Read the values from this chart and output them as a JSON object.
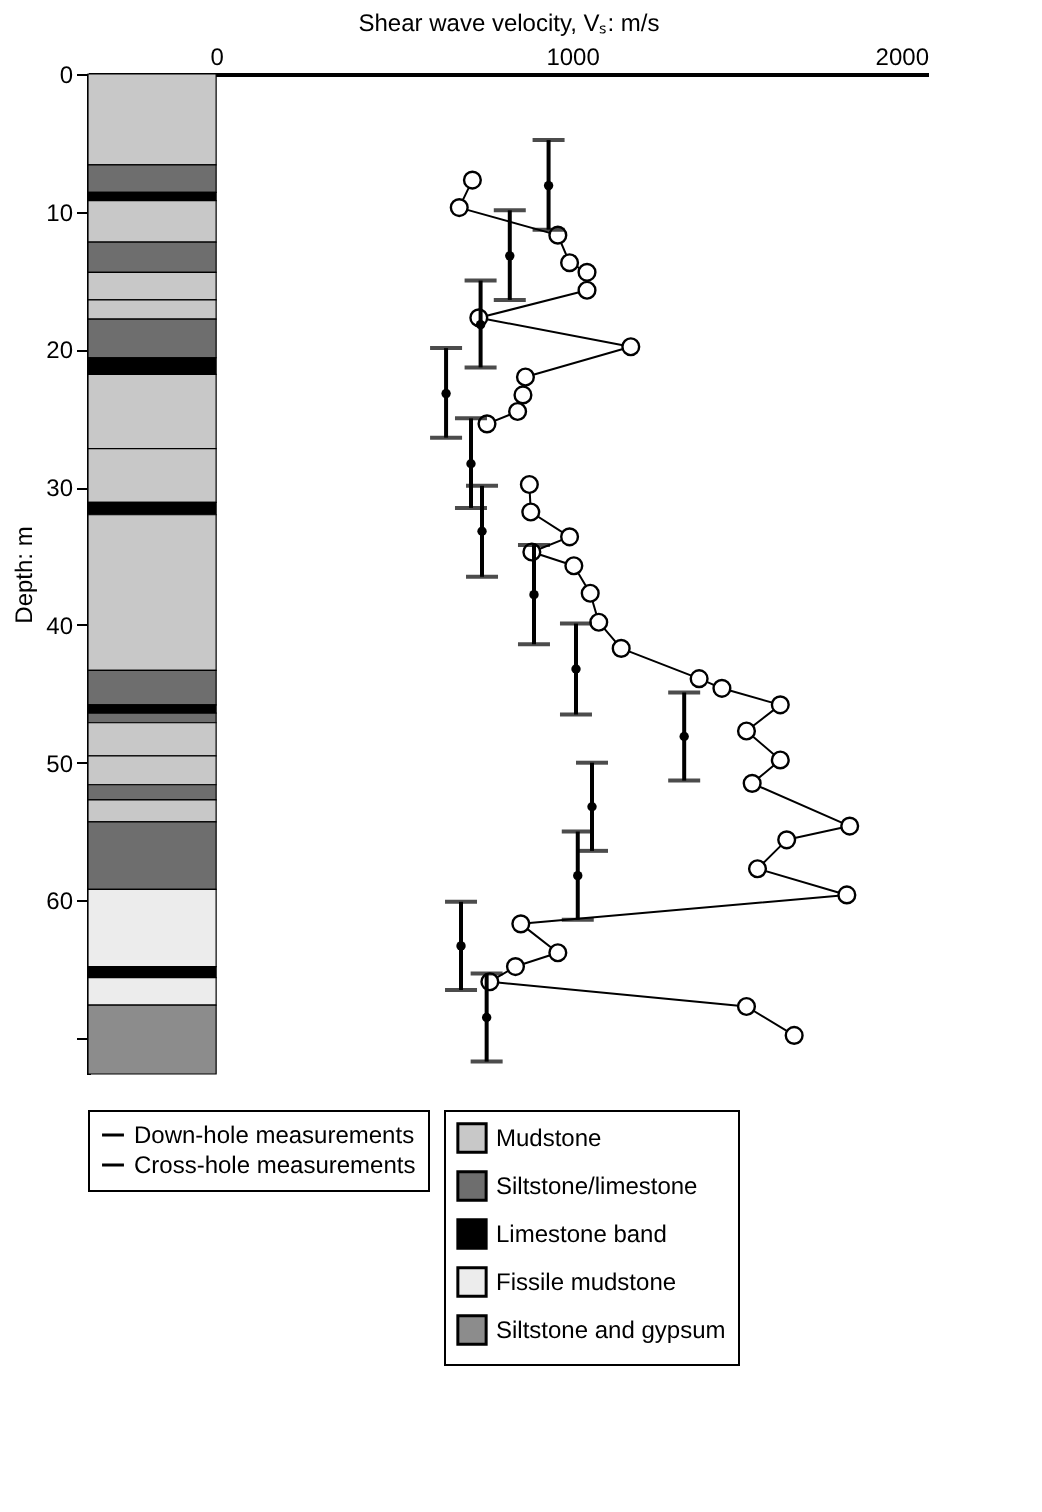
{
  "chart_data": {
    "type": "line",
    "xlabel": "Shear wave velocity, Vₛ: m/s",
    "ylabel": "Depth: m",
    "xlim": [
      -360,
      2000
    ],
    "xticks": [
      0,
      1000,
      2000
    ],
    "ylim": [
      72.6,
      0
    ],
    "yticks": [
      0,
      10,
      20,
      30,
      40,
      50,
      60,
      {
        "value": 70,
        "label": null
      }
    ],
    "grid": false,
    "legend": "bottom",
    "series": [
      {
        "name": "Down-hole measurements",
        "type": "scatter",
        "color": "#000000",
        "x": [
          934,
          825,
          743,
          646,
          716,
          747,
          893,
          1011,
          1315,
          1056,
          1016,
          688,
          760
        ],
        "values": [
          8.1,
          13.2,
          18.2,
          23.2,
          28.3,
          33.2,
          37.8,
          43.2,
          48.1,
          53.2,
          58.2,
          63.3,
          68.5
        ],
        "errors": [
          [
            4.8,
            11.3
          ],
          [
            9.9,
            16.4
          ],
          [
            15.0,
            21.3
          ],
          [
            19.9,
            26.4
          ],
          [
            25.0,
            31.5
          ],
          [
            29.9,
            36.5
          ],
          [
            34.2,
            41.4
          ],
          [
            39.9,
            46.5
          ],
          [
            44.9,
            51.3
          ],
          [
            50.0,
            56.4
          ],
          [
            55.0,
            61.4
          ],
          [
            60.1,
            66.5
          ],
          [
            65.3,
            71.7
          ]
        ]
      },
      {
        "name": "Cross-hole measurements",
        "marker": "circle",
        "line_style": "solid",
        "color": "#000000",
        "x": [
          720,
          683,
          960,
          993,
          1042,
          1042,
          738,
          1165,
          869,
          862,
          847,
          761,
          null,
          880,
          884,
          993,
          887,
          1005,
          1051,
          1075,
          1138,
          1357,
          1421,
          1585,
          1490,
          1585,
          1506,
          1780,
          1603,
          1521,
          1772,
          856,
          960,
          841,
          769,
          1490,
          1624
        ],
        "values": [
          7.7,
          9.7,
          11.7,
          13.7,
          14.4,
          15.7,
          17.7,
          19.8,
          22.0,
          23.3,
          24.5,
          25.4,
          null,
          29.8,
          31.8,
          33.6,
          34.7,
          35.7,
          37.7,
          39.8,
          41.7,
          43.9,
          44.6,
          45.8,
          47.7,
          49.8,
          51.5,
          54.6,
          55.6,
          57.7,
          59.6,
          61.7,
          63.8,
          64.8,
          65.9,
          67.7,
          69.8
        ]
      }
    ],
    "bands": [
      {
        "axis": "y",
        "from": 0,
        "to": 6.6,
        "label": "Mudstone",
        "color": "#c8c8c8"
      },
      {
        "axis": "y",
        "from": 6.6,
        "to": 8.6,
        "label": "Siltstone/limestone",
        "color": "#6e6e6e"
      },
      {
        "axis": "y",
        "from": 8.6,
        "to": 9.2,
        "label": "Limestone band",
        "color": "#000000"
      },
      {
        "axis": "y",
        "from": 9.2,
        "to": 12.2,
        "color": "#c8c8c8"
      },
      {
        "axis": "y",
        "from": 12.2,
        "to": 14.4,
        "color": "#6e6e6e"
      },
      {
        "axis": "y",
        "from": 14.4,
        "to": 16.4,
        "color": "#c8c8c8"
      },
      {
        "axis": "y",
        "from": 16.4,
        "to": 17.8,
        "color": "#c8c8c8"
      },
      {
        "axis": "y",
        "from": 17.8,
        "to": 20.6,
        "color": "#6e6e6e"
      },
      {
        "axis": "y",
        "from": 20.6,
        "to": 21.8,
        "color": "#000000"
      },
      {
        "axis": "y",
        "from": 21.8,
        "to": 27.2,
        "color": "#c8c8c8"
      },
      {
        "axis": "y",
        "from": 27.2,
        "to": 31.1,
        "color": "#c8c8c8"
      },
      {
        "axis": "y",
        "from": 31.1,
        "to": 32.0,
        "color": "#000000"
      },
      {
        "axis": "y",
        "from": 32.0,
        "to": 43.3,
        "color": "#c8c8c8"
      },
      {
        "axis": "y",
        "from": 43.3,
        "to": 45.8,
        "color": "#6e6e6e"
      },
      {
        "axis": "y",
        "from": 45.8,
        "to": 46.4,
        "color": "#000000"
      },
      {
        "axis": "y",
        "from": 46.4,
        "to": 47.1,
        "color": "#6e6e6e"
      },
      {
        "axis": "y",
        "from": 47.1,
        "to": 49.5,
        "color": "#c8c8c8"
      },
      {
        "axis": "y",
        "from": 49.5,
        "to": 51.6,
        "color": "#c8c8c8"
      },
      {
        "axis": "y",
        "from": 51.6,
        "to": 52.7,
        "color": "#6e6e6e"
      },
      {
        "axis": "y",
        "from": 52.7,
        "to": 54.3,
        "color": "#c8c8c8"
      },
      {
        "axis": "y",
        "from": 54.3,
        "to": 59.2,
        "color": "#6e6e6e"
      },
      {
        "axis": "y",
        "from": 59.2,
        "to": 64.8,
        "label": "Fissile mudstone",
        "color": "#ececec"
      },
      {
        "axis": "y",
        "from": 64.8,
        "to": 65.6,
        "color": "#000000"
      },
      {
        "axis": "y",
        "from": 65.6,
        "to": 67.6,
        "color": "#ececec"
      },
      {
        "axis": "y",
        "from": 67.6,
        "to": 72.6,
        "label": "Siltstone and gypsum",
        "color": "#8c8c8c"
      }
    ]
  }
}
